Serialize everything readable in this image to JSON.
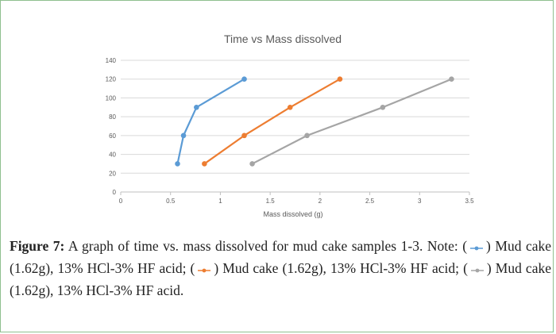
{
  "chart_data": {
    "type": "scatter",
    "title": "Time vs Mass dissolved",
    "xlabel": "Mass dissolved (g)",
    "ylabel": "",
    "xlim": [
      0,
      3.5
    ],
    "ylim": [
      0,
      140
    ],
    "x_ticks": [
      0,
      0.5,
      1,
      1.5,
      2,
      2.5,
      3,
      3.5
    ],
    "y_ticks": [
      0,
      20,
      40,
      60,
      80,
      100,
      120,
      140
    ],
    "x_tick_labels": [
      "0",
      "0.5",
      "1",
      "1.5",
      "2",
      "2.5",
      "3",
      "3.5"
    ],
    "y_tick_labels": [
      "0",
      "20",
      "40",
      "60",
      "80",
      "100",
      "120",
      "140"
    ],
    "grid": "horizontal",
    "legend": "none",
    "series": [
      {
        "color": "#5b9bd5",
        "points": [
          [
            0.57,
            30
          ],
          [
            0.63,
            60
          ],
          [
            0.76,
            90
          ],
          [
            1.24,
            120
          ]
        ]
      },
      {
        "color": "#ed7d31",
        "points": [
          [
            0.84,
            30
          ],
          [
            1.24,
            60
          ],
          [
            1.7,
            90
          ],
          [
            2.2,
            120
          ]
        ]
      },
      {
        "color": "#a5a5a5",
        "points": [
          [
            1.32,
            30
          ],
          [
            1.87,
            60
          ],
          [
            2.63,
            90
          ],
          [
            3.32,
            120
          ]
        ]
      }
    ]
  },
  "caption": {
    "label": "Figure 7:",
    "text": " A graph of time vs. mass dissolved for mud cake samples 1-3. Note: (",
    "legend_items": [
      {
        "color": "#5b9bd5",
        "text": ") Mud cake (1.62g), 13% HCl-3% HF acid; ("
      },
      {
        "color": "#ed7d31",
        "text": ") Mud cake (1.62g), 13% HCl-3% HF acid; ("
      },
      {
        "color": "#a5a5a5",
        "text": ") Mud cake (1.62g), 13% HCl-3% HF acid."
      }
    ]
  }
}
